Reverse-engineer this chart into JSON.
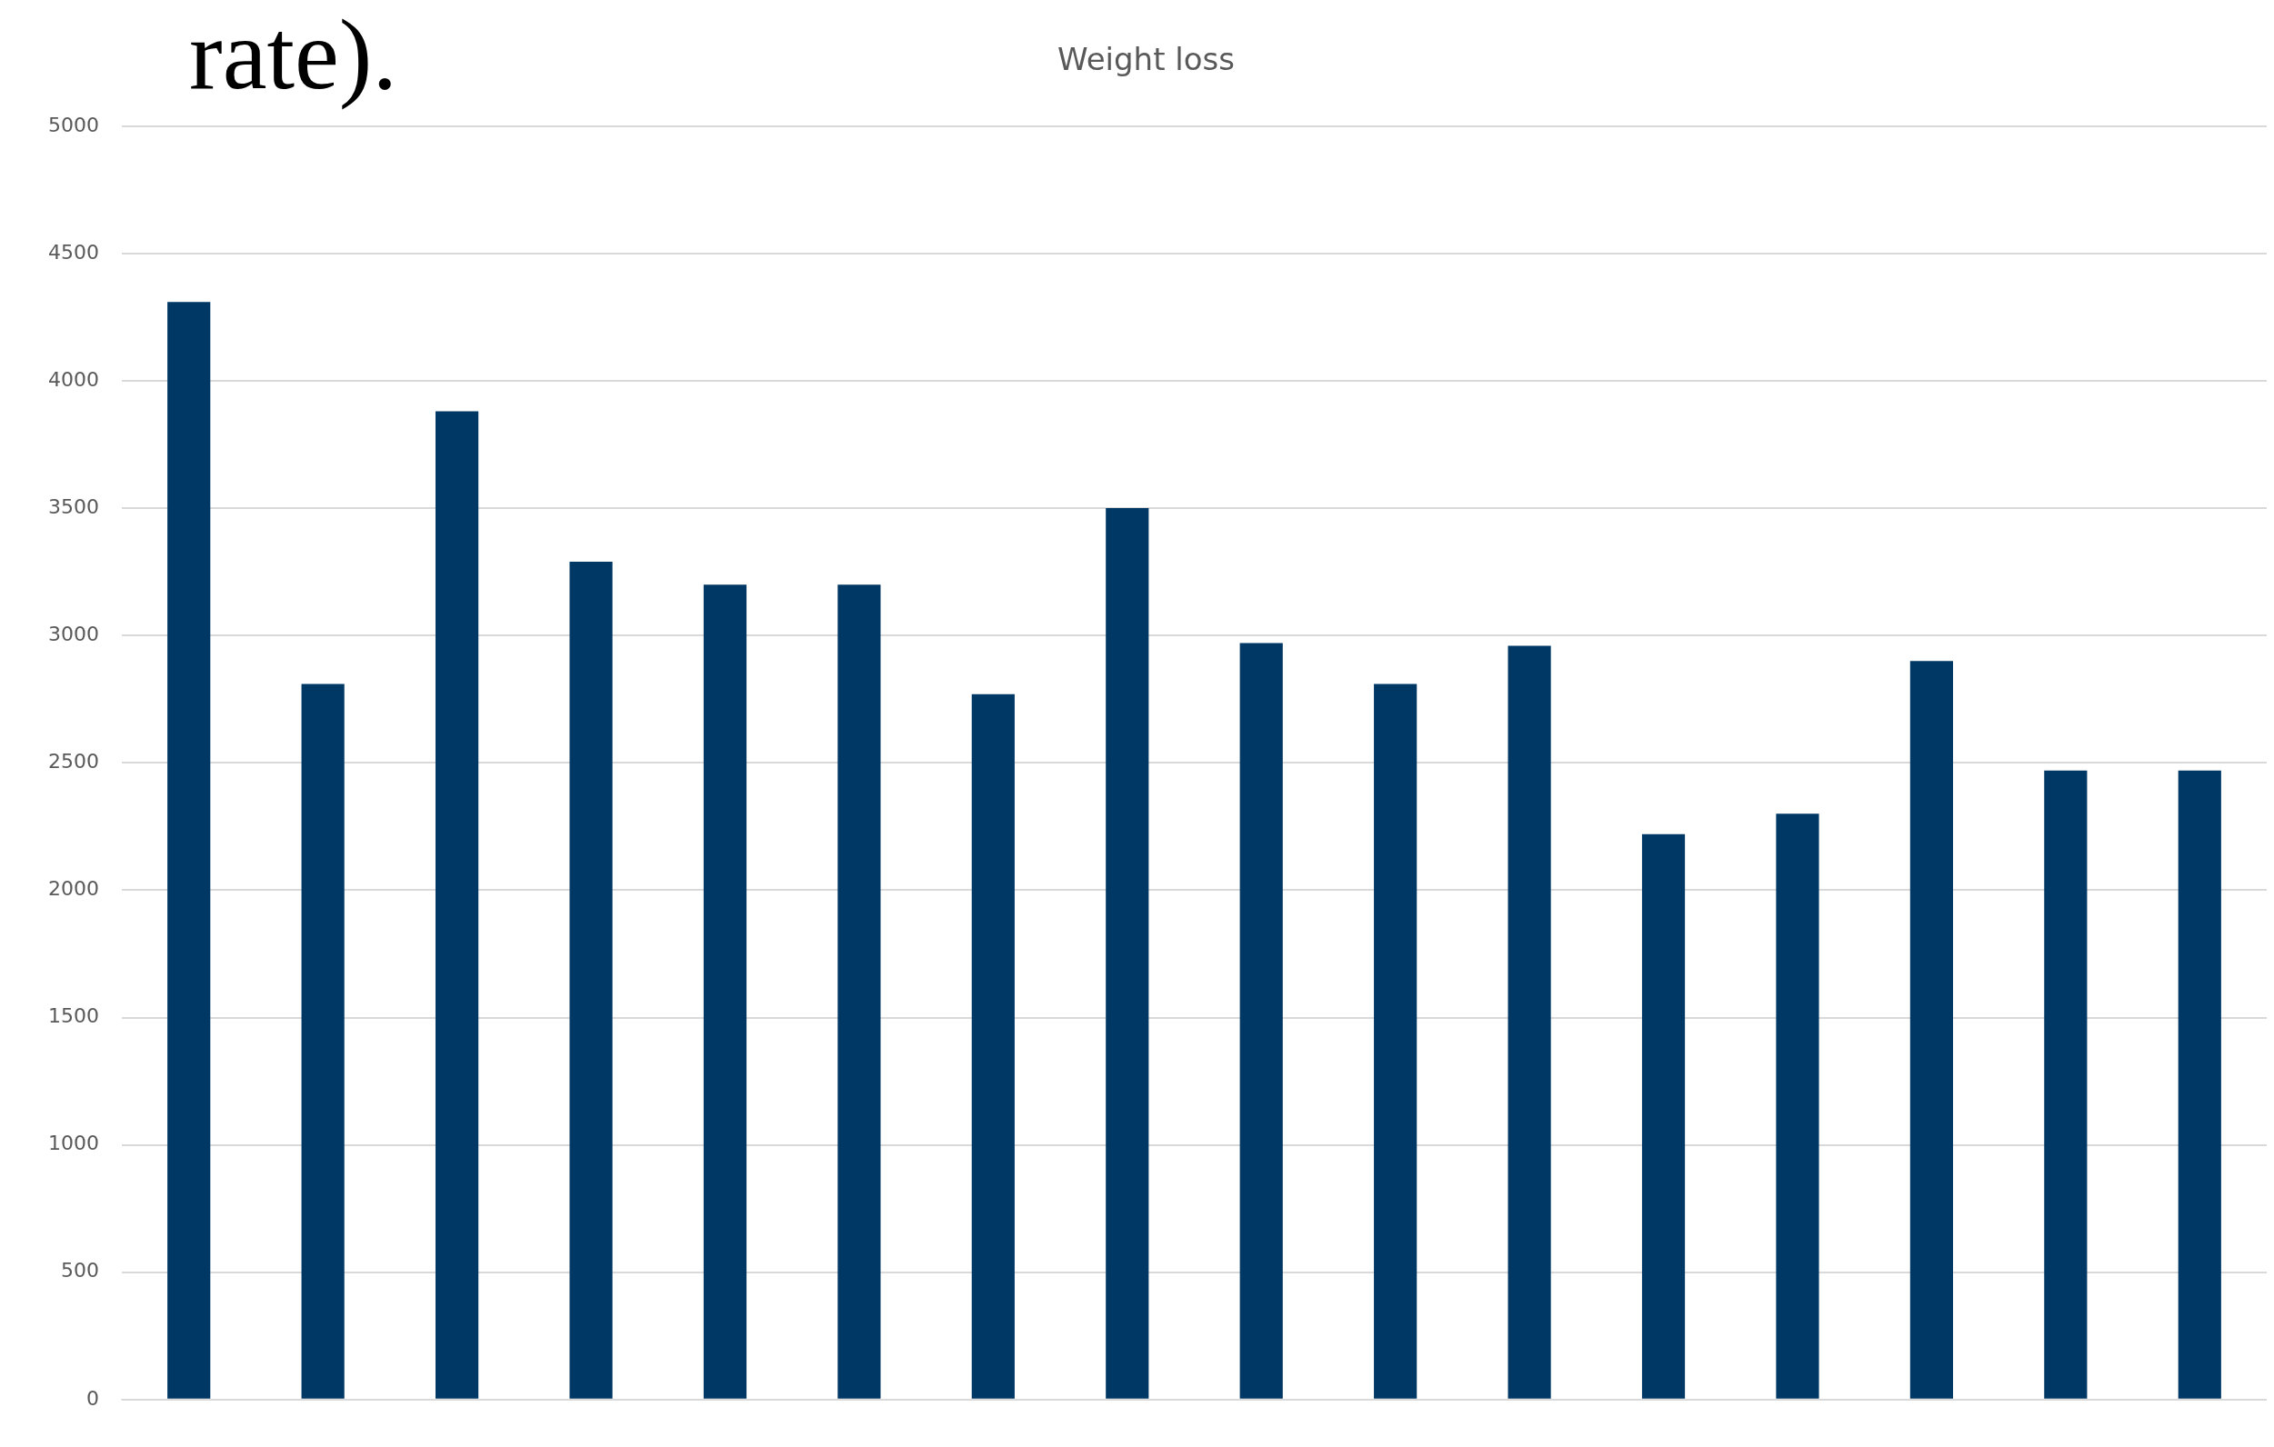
{
  "chart_data": {
    "type": "bar",
    "title": "Weight loss",
    "annotations": [
      "rate)."
    ],
    "categories": [
      null,
      null,
      null,
      null,
      null,
      null,
      null,
      null,
      null,
      null,
      null,
      null,
      null,
      null,
      null,
      null
    ],
    "values": [
      4310,
      2810,
      3880,
      3290,
      3200,
      3200,
      2770,
      3500,
      2970,
      2810,
      2960,
      2220,
      2300,
      2900,
      2470,
      2470
    ],
    "color": "#003865",
    "ylim": [
      0,
      5000
    ],
    "yticks": [
      0,
      500,
      1000,
      1500,
      2000,
      2500,
      3000,
      3500,
      4000,
      4500,
      5000
    ],
    "grid": "y"
  }
}
